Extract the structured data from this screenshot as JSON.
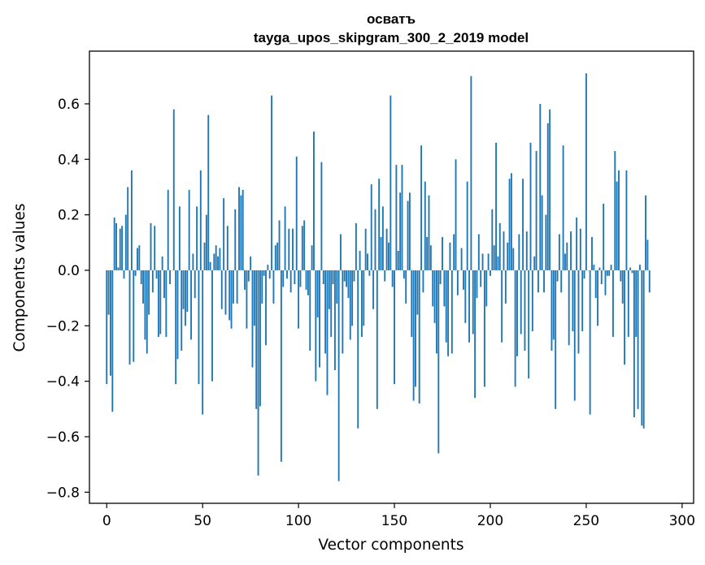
{
  "chart_data": {
    "type": "bar",
    "title": "осватъ",
    "subtitle": "tayga_upos_skipgram_300_2_2019 model",
    "xlabel": "Vector components",
    "ylabel": "Components values",
    "xlim": [
      -9,
      306
    ],
    "ylim": [
      -0.84,
      0.79
    ],
    "xticks": [
      0,
      50,
      100,
      150,
      200,
      250,
      300
    ],
    "yticks": [
      -0.8,
      -0.6,
      -0.4,
      -0.2,
      0.0,
      0.2,
      0.4,
      0.6
    ],
    "ytick_labels": [
      "−0.8",
      "−0.6",
      "−0.4",
      "−0.2",
      "0.0",
      "0.2",
      "0.4",
      "0.6"
    ],
    "bar_color": "#1f77b4",
    "grid": false,
    "x": "component index 0..299",
    "values": [
      -0.41,
      -0.16,
      -0.38,
      -0.51,
      0.19,
      0.17,
      0.01,
      0.15,
      0.16,
      -0.03,
      0.2,
      0.3,
      -0.34,
      0.36,
      -0.33,
      -0.02,
      0.08,
      0.09,
      -0.05,
      -0.12,
      -0.25,
      -0.3,
      -0.16,
      0.17,
      -0.08,
      0.16,
      -0.03,
      -0.24,
      -0.23,
      0.05,
      -0.1,
      -0.24,
      0.29,
      -0.05,
      0.0,
      0.58,
      -0.41,
      -0.32,
      0.23,
      -0.29,
      -0.14,
      -0.2,
      -0.15,
      0.29,
      -0.25,
      0.06,
      -0.1,
      0.23,
      -0.41,
      0.36,
      -0.52,
      0.1,
      0.2,
      0.56,
      0.03,
      -0.4,
      0.06,
      0.09,
      0.05,
      0.08,
      -0.14,
      0.26,
      -0.16,
      0.16,
      -0.18,
      -0.21,
      -0.12,
      0.22,
      -0.12,
      0.3,
      0.27,
      0.29,
      -0.07,
      -0.21,
      -0.04,
      0.05,
      -0.35,
      -0.2,
      -0.5,
      -0.74,
      -0.49,
      -0.12,
      -0.02,
      -0.27,
      0.02,
      -0.03,
      0.63,
      -0.12,
      0.09,
      0.1,
      0.18,
      -0.69,
      -0.06,
      0.23,
      -0.03,
      0.15,
      -0.08,
      0.15,
      -0.05,
      0.41,
      -0.21,
      -0.06,
      0.16,
      0.18,
      -0.07,
      -0.09,
      -0.29,
      0.09,
      0.5,
      -0.4,
      -0.17,
      -0.35,
      0.39,
      -0.05,
      -0.3,
      -0.45,
      -0.14,
      -0.24,
      -0.05,
      -0.36,
      -0.12,
      -0.76,
      0.13,
      -0.3,
      -0.04,
      -0.06,
      -0.1,
      -0.25,
      -0.2,
      -0.04,
      0.17,
      -0.57,
      0.07,
      -0.24,
      -0.2,
      0.15,
      0.06,
      -0.02,
      0.31,
      -0.14,
      0.22,
      -0.5,
      0.33,
      0.12,
      0.23,
      -0.04,
      0.15,
      0.1,
      0.63,
      -0.06,
      -0.41,
      0.38,
      0.07,
      0.28,
      0.38,
      -0.03,
      -0.12,
      0.25,
      0.28,
      -0.24,
      -0.47,
      -0.42,
      -0.16,
      -0.48,
      0.45,
      -0.08,
      0.32,
      0.12,
      0.27,
      0.09,
      -0.13,
      -0.19,
      -0.3,
      -0.66,
      -0.05,
      0.12,
      -0.13,
      -0.26,
      -0.31,
      0.1,
      -0.3,
      0.13,
      0.4,
      -0.09,
      0.0,
      0.08,
      -0.07,
      -0.19,
      0.32,
      -0.26,
      0.7,
      -0.23,
      -0.46,
      -0.1,
      0.13,
      -0.06,
      0.06,
      -0.42,
      -0.13,
      0.06,
      -0.02,
      0.22,
      0.09,
      0.46,
      0.05,
      0.17,
      -0.26,
      0.14,
      -0.12,
      0.1,
      0.33,
      0.35,
      0.08,
      -0.42,
      -0.31,
      0.13,
      -0.23,
      0.33,
      -0.29,
      0.14,
      -0.39,
      0.46,
      -0.22,
      0.05,
      0.43,
      -0.08,
      0.6,
      0.27,
      -0.08,
      0.2,
      0.53,
      0.58,
      -0.29,
      -0.25,
      -0.5,
      -0.04,
      0.13,
      -0.08,
      0.45,
      0.06,
      0.1,
      -0.27,
      0.14,
      -0.22,
      -0.47,
      0.19,
      -0.3,
      0.15,
      -0.22,
      -0.03,
      0.71,
      0.0,
      -0.52,
      0.12,
      0.02,
      -0.1,
      -0.2,
      0.01,
      -0.05,
      0.24,
      -0.09,
      -0.02,
      -0.02,
      0.02,
      -0.24,
      0.43,
      0.32,
      0.36,
      -0.04,
      -0.12,
      -0.34,
      0.36,
      -0.24,
      0.01,
      -0.01,
      -0.53,
      -0.24,
      -0.5,
      0.02,
      -0.56,
      -0.57,
      0.27,
      0.11,
      -0.08
    ]
  }
}
